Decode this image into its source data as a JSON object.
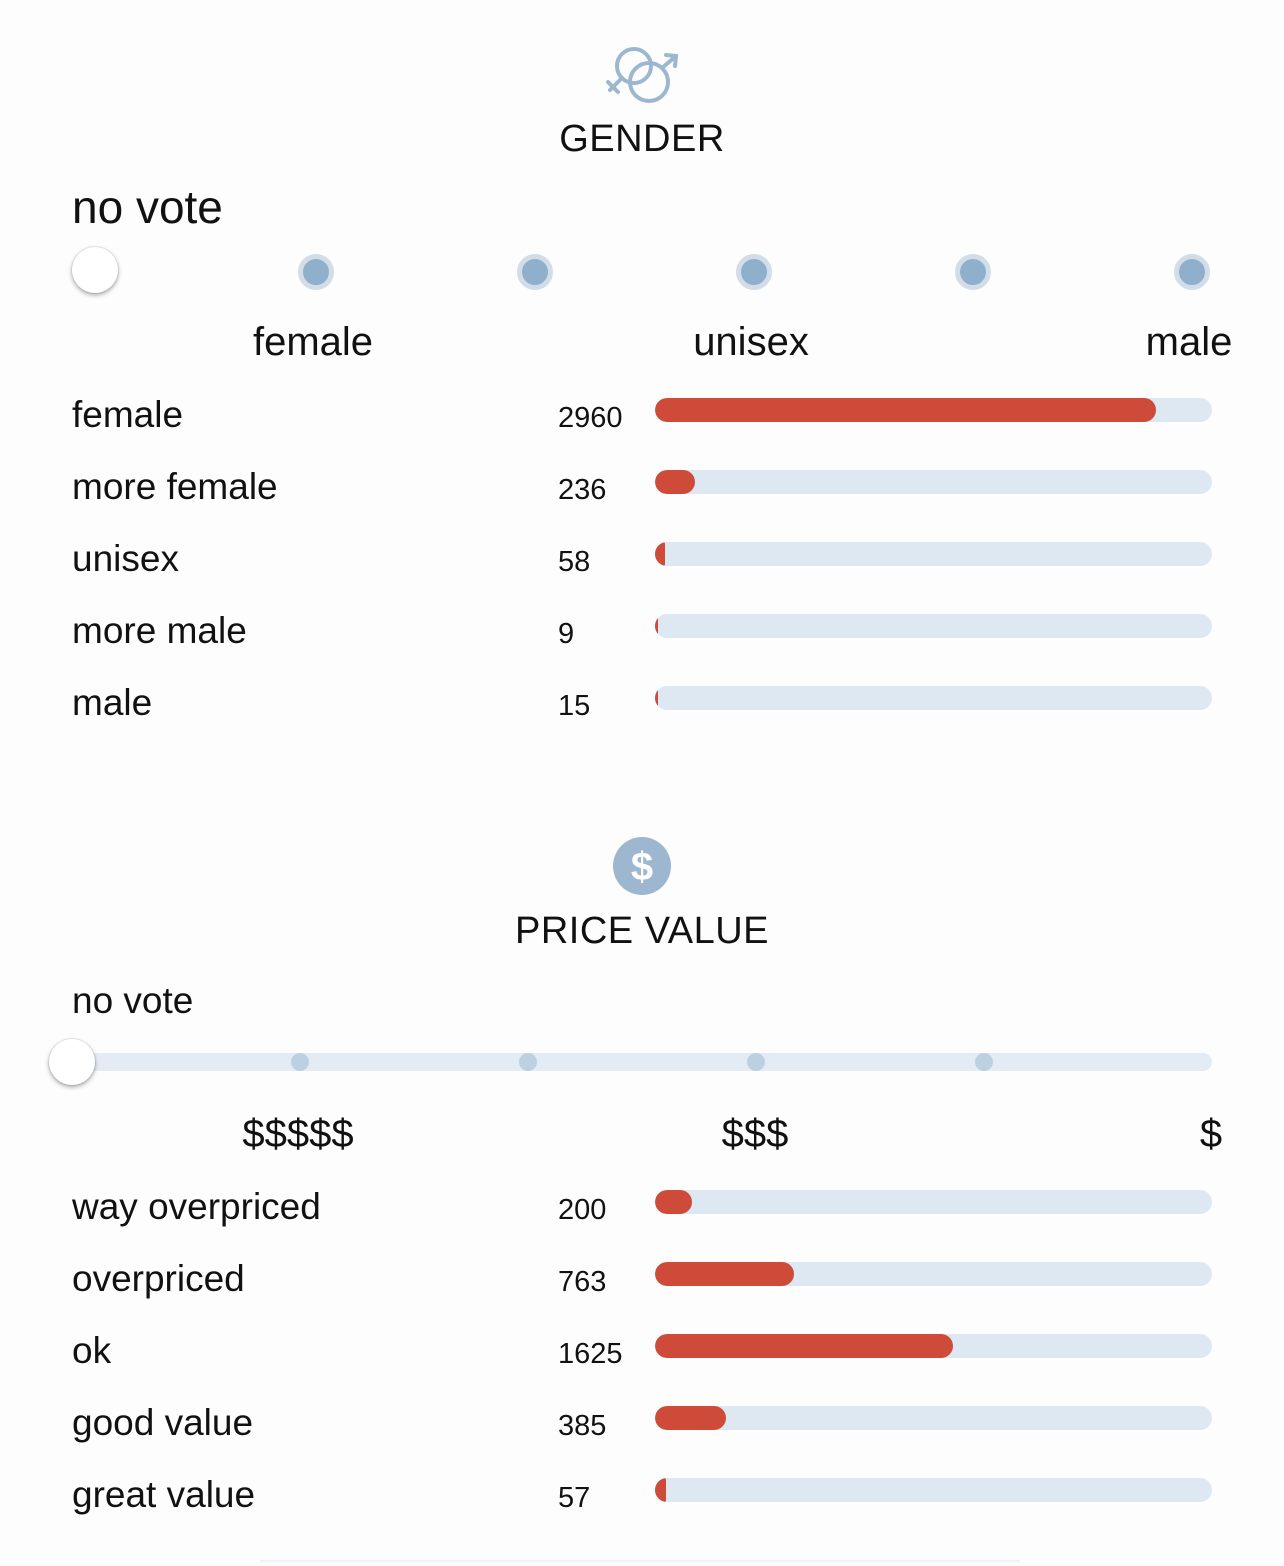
{
  "colors": {
    "bar_fill": "#cd4b38",
    "bar_track": "#dde8f3",
    "accent_icon": "#9db7d0"
  },
  "gender": {
    "icon": "gender-symbols-icon",
    "title": "GENDER",
    "vote_status": "no vote",
    "scale_labels": [
      "female",
      "unisex",
      "male"
    ],
    "rows": [
      {
        "label": "female",
        "count": "2960",
        "fraction": 0.9
      },
      {
        "label": "more female",
        "count": "236",
        "fraction": 0.072
      },
      {
        "label": "unisex",
        "count": "58",
        "fraction": 0.018
      },
      {
        "label": "more male",
        "count": "9",
        "fraction": 0.004
      },
      {
        "label": "male",
        "count": "15",
        "fraction": 0.005
      }
    ]
  },
  "price": {
    "icon": "dollar-circle-icon",
    "title": "PRICE VALUE",
    "vote_status": "no vote",
    "scale_labels": [
      "$$$$$",
      "$$$",
      "$"
    ],
    "rows": [
      {
        "label": "way overpriced",
        "count": "200",
        "fraction": 0.066
      },
      {
        "label": "overpriced",
        "count": "763",
        "fraction": 0.25
      },
      {
        "label": "ok",
        "count": "1625",
        "fraction": 0.535
      },
      {
        "label": "good value",
        "count": "385",
        "fraction": 0.127
      },
      {
        "label": "great value",
        "count": "57",
        "fraction": 0.019
      }
    ]
  }
}
